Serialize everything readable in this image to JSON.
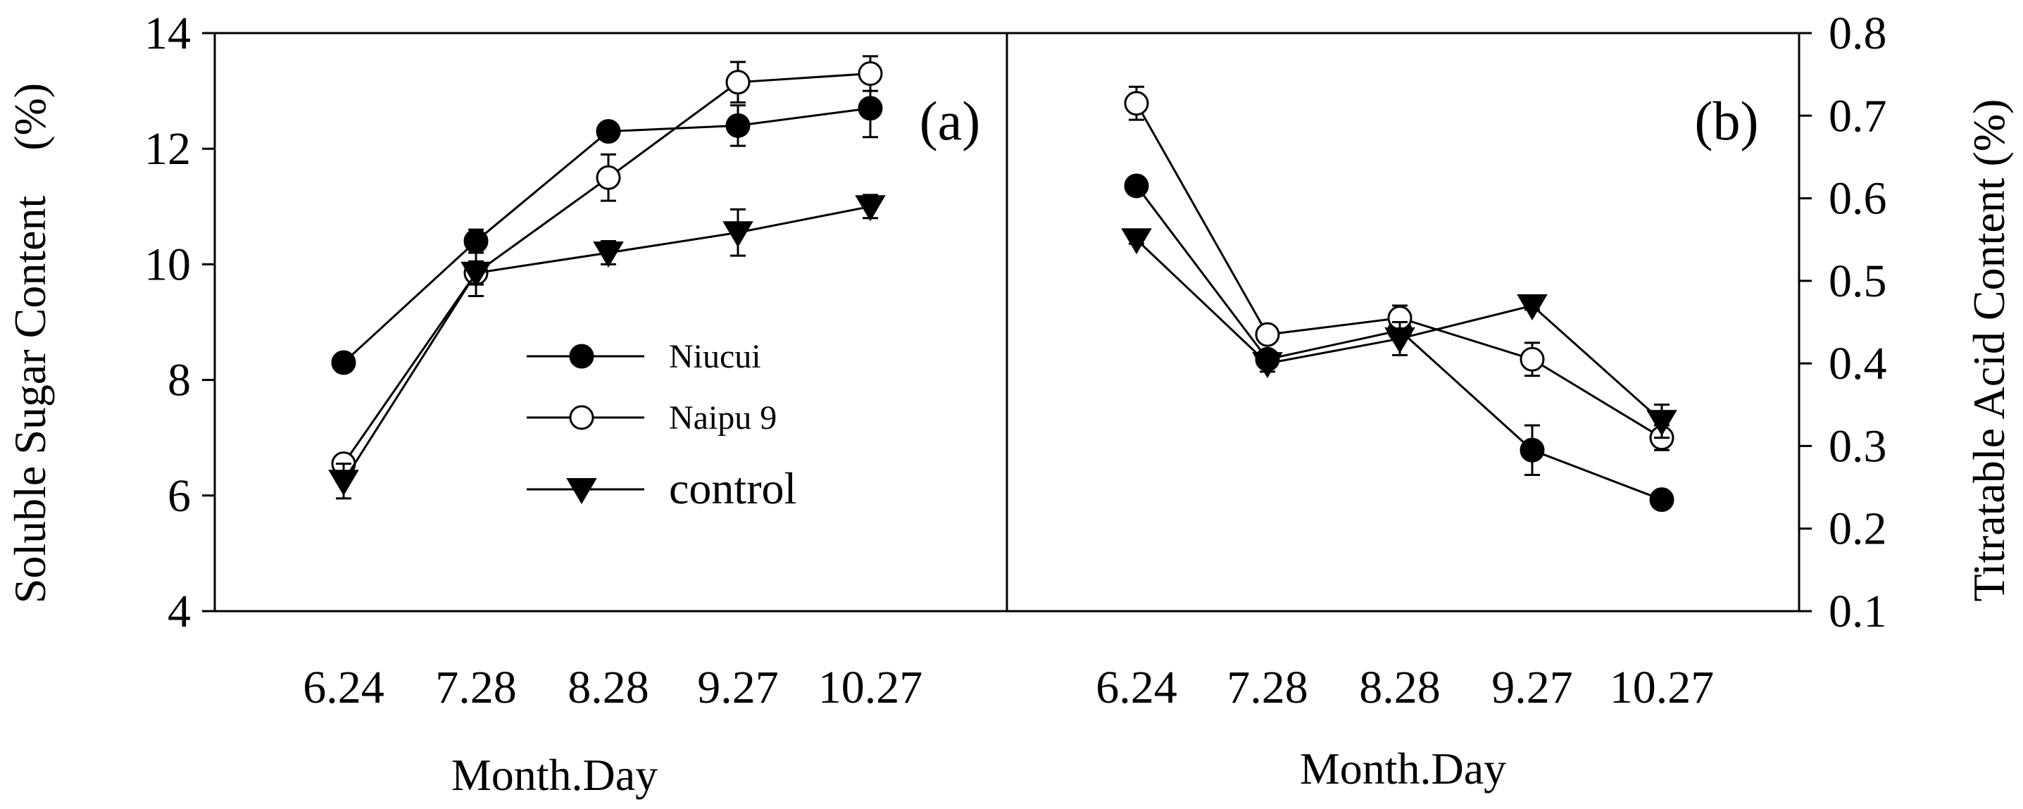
{
  "chart_data": [
    {
      "type": "line",
      "panel_label": "(a)",
      "xlabel": "Month.Day",
      "ylabel": "Soluble Sugar Content　(%)",
      "categories": [
        "6.24",
        "7.28",
        "8.28",
        "9.27",
        "10.27"
      ],
      "ylim": [
        4,
        14
      ],
      "yticks": [
        "4",
        "6",
        "8",
        "10",
        "12",
        "14"
      ],
      "series": [
        {
          "name": "Niucui",
          "marker": "filled-circle",
          "values": [
            8.3,
            10.4,
            12.3,
            12.4,
            12.7
          ],
          "errors": [
            0.15,
            0.2,
            0.15,
            0.35,
            0.5
          ]
        },
        {
          "name": "Naipu 9",
          "marker": "open-circle",
          "values": [
            6.55,
            9.85,
            11.5,
            13.15,
            13.3
          ],
          "errors": [
            0.15,
            0.2,
            0.4,
            0.35,
            0.3
          ]
        },
        {
          "name": "control",
          "marker": "filled-triangle-down",
          "values": [
            6.25,
            9.85,
            10.2,
            10.55,
            11.0
          ],
          "errors": [
            0.3,
            0.4,
            0.2,
            0.4,
            0.2
          ]
        }
      ],
      "legend": [
        "Niucui",
        "Naipu 9",
        "control"
      ],
      "legend_position": "center"
    },
    {
      "type": "line",
      "panel_label": "(b)",
      "xlabel": "Month.Day",
      "ylabel": "Titratable Acid Content (%)",
      "categories": [
        "6.24",
        "7.28",
        "8.28",
        "9.27",
        "10.27"
      ],
      "ylim": [
        0.1,
        0.8
      ],
      "yticks": [
        "0.1",
        "0.2",
        "0.3",
        "0.4",
        "0.5",
        "0.6",
        "0.7",
        "0.8"
      ],
      "series": [
        {
          "name": "Niucui",
          "marker": "filled-circle",
          "values": [
            0.615,
            0.405,
            0.44,
            0.295,
            0.235
          ],
          "errors": [
            0.005,
            0.01,
            0.01,
            0.03,
            0.005
          ]
        },
        {
          "name": "Naipu 9",
          "marker": "open-circle",
          "values": [
            0.715,
            0.435,
            0.455,
            0.405,
            0.31
          ],
          "errors": [
            0.02,
            0.01,
            0.015,
            0.02,
            0.015
          ]
        },
        {
          "name": "control",
          "marker": "filled-triangle-down",
          "values": [
            0.55,
            0.4,
            0.43,
            0.47,
            0.33
          ],
          "errors": [
            0.005,
            0.01,
            0.02,
            0.005,
            0.02
          ]
        }
      ]
    }
  ]
}
